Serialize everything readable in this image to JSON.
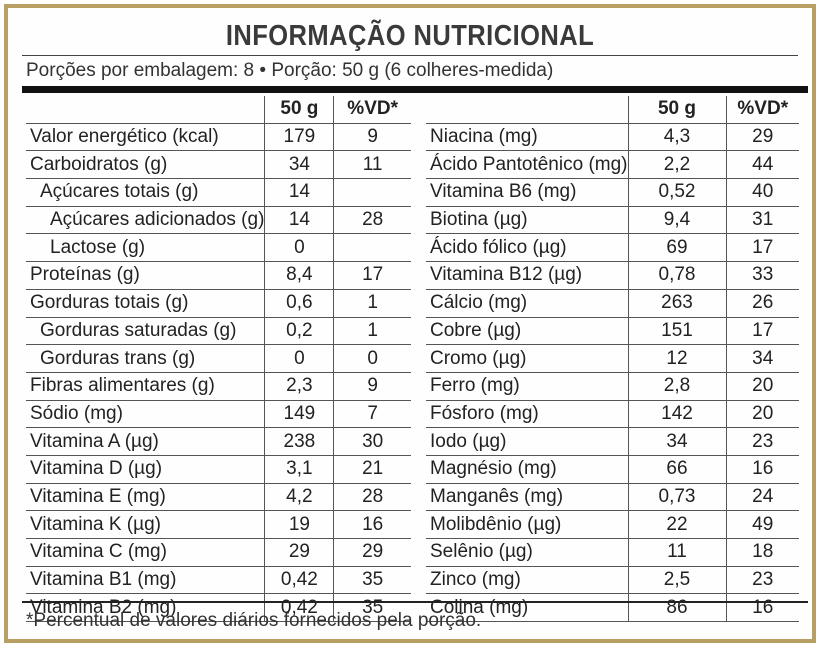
{
  "title": "INFORMAÇÃO NUTRICIONAL",
  "serving": "Porções por embalagem: 8 • Porção: 50 g (6 colheres-medida)",
  "headers": {
    "portion": "50 g",
    "dv": "%VD*"
  },
  "left_rows": [
    {
      "name": "Valor energético (kcal)",
      "value": "179",
      "dv": "9",
      "indent": 0
    },
    {
      "name": "Carboidratos (g)",
      "value": "34",
      "dv": "11",
      "indent": 0
    },
    {
      "name": "Açúcares totais (g)",
      "value": "14",
      "dv": "",
      "indent": 1
    },
    {
      "name": "Açúcares adicionados (g)",
      "value": "14",
      "dv": "28",
      "indent": 2
    },
    {
      "name": "Lactose (g)",
      "value": "0",
      "dv": "",
      "indent": 2
    },
    {
      "name": "Proteínas (g)",
      "value": "8,4",
      "dv": "17",
      "indent": 0
    },
    {
      "name": "Gorduras totais (g)",
      "value": "0,6",
      "dv": "1",
      "indent": 0
    },
    {
      "name": "Gorduras saturadas (g)",
      "value": "0,2",
      "dv": "1",
      "indent": 1
    },
    {
      "name": "Gorduras trans (g)",
      "value": "0",
      "dv": "0",
      "indent": 1
    },
    {
      "name": "Fibras alimentares (g)",
      "value": "2,3",
      "dv": "9",
      "indent": 0
    },
    {
      "name": "Sódio (mg)",
      "value": "149",
      "dv": "7",
      "indent": 0
    },
    {
      "name": "Vitamina A (µg)",
      "value": "238",
      "dv": "30",
      "indent": 0
    },
    {
      "name": "Vitamina D (µg)",
      "value": "3,1",
      "dv": "21",
      "indent": 0
    },
    {
      "name": "Vitamina E (mg)",
      "value": "4,2",
      "dv": "28",
      "indent": 0
    },
    {
      "name": "Vitamina K (µg)",
      "value": "19",
      "dv": "16",
      "indent": 0
    },
    {
      "name": "Vitamina C (mg)",
      "value": "29",
      "dv": "29",
      "indent": 0
    },
    {
      "name": "Vitamina B1 (mg)",
      "value": "0,42",
      "dv": "35",
      "indent": 0
    },
    {
      "name": "Vitamina B2 (mg)",
      "value": "0,42",
      "dv": "35",
      "indent": 0
    }
  ],
  "right_rows": [
    {
      "name": "Niacina (mg)",
      "value": "4,3",
      "dv": "29"
    },
    {
      "name": "Ácido Pantotênico (mg)",
      "value": "2,2",
      "dv": "44"
    },
    {
      "name": "Vitamina B6 (mg)",
      "value": "0,52",
      "dv": "40"
    },
    {
      "name": "Biotina (µg)",
      "value": "9,4",
      "dv": "31"
    },
    {
      "name": "Ácido fólico (µg)",
      "value": "69",
      "dv": "17"
    },
    {
      "name": "Vitamina B12 (µg)",
      "value": "0,78",
      "dv": "33"
    },
    {
      "name": "Cálcio (mg)",
      "value": "263",
      "dv": "26"
    },
    {
      "name": "Cobre (µg)",
      "value": "151",
      "dv": "17"
    },
    {
      "name": "Cromo (µg)",
      "value": "12",
      "dv": "34"
    },
    {
      "name": "Ferro (mg)",
      "value": "2,8",
      "dv": "20"
    },
    {
      "name": "Fósforo (mg)",
      "value": "142",
      "dv": "20"
    },
    {
      "name": "Iodo (µg)",
      "value": "34",
      "dv": "23"
    },
    {
      "name": "Magnésio (mg)",
      "value": "66",
      "dv": "16"
    },
    {
      "name": "Manganês (mg)",
      "value": "0,73",
      "dv": "24"
    },
    {
      "name": "Molibdênio (µg)",
      "value": "22",
      "dv": "49"
    },
    {
      "name": "Selênio (µg)",
      "value": "11",
      "dv": "18"
    },
    {
      "name": "Zinco (mg)",
      "value": "2,5",
      "dv": "23"
    },
    {
      "name": "Colina (mg)",
      "value": "86",
      "dv": "16"
    }
  ],
  "footnote": "*Percentual de valores diários fornecidos pela porção.",
  "colors": {
    "border": "#b8a064",
    "text": "#222222"
  }
}
